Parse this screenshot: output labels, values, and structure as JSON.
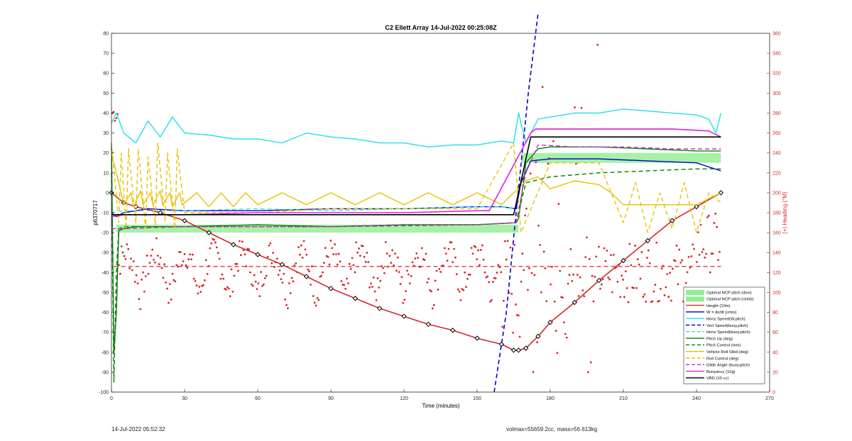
{
  "chart_data": {
    "type": "line",
    "title": "C2 Ellett Array 14-Jul-2022 00:25:08Z",
    "xlabel": "Time (minutes)",
    "ylabel": "p6370717",
    "y2label": "(+) Heading (°M)",
    "xlim": [
      0,
      270
    ],
    "ylim": [
      -100,
      80
    ],
    "y2lim": [
      0,
      360
    ],
    "xticks": [
      0,
      30,
      60,
      90,
      120,
      150,
      180,
      210,
      240,
      270
    ],
    "yticks": [
      -100,
      -90,
      -80,
      -70,
      -60,
      -50,
      -40,
      -30,
      -20,
      -10,
      0,
      10,
      20,
      30,
      40,
      50,
      60,
      70,
      80
    ],
    "y2ticks": [
      0,
      20,
      40,
      60,
      80,
      100,
      120,
      140,
      160,
      180,
      200,
      220,
      240,
      260,
      280,
      300,
      320,
      340,
      360
    ],
    "grid": false,
    "legend_position": "bottom-right",
    "heading_color": "#d62728",
    "bands": [
      {
        "name": "Optimal NCP pitch (dive)",
        "color": "#90ee90",
        "x": [
          2,
          167
        ],
        "y": [
          -20,
          -16
        ]
      },
      {
        "name": "Optimal NCP pitch (climb)",
        "color": "#90ee90",
        "x": [
          168,
          250
        ],
        "y": [
          15,
          20
        ]
      }
    ],
    "series": [
      {
        "name": "Height (10m)",
        "color": "#d62728",
        "style": "solid",
        "width": 1.6,
        "markers": "diamond",
        "x": [
          0,
          5,
          10,
          20,
          30,
          40,
          50,
          60,
          70,
          80,
          90,
          100,
          110,
          120,
          130,
          140,
          150,
          160,
          165,
          167,
          170,
          175,
          180,
          190,
          200,
          210,
          220,
          230,
          240,
          250
        ],
        "y": [
          0,
          -5,
          -7,
          -10,
          -14,
          -20,
          -26,
          -31,
          -36,
          -42,
          -48,
          -53,
          -58,
          -62,
          -66,
          -69,
          -73,
          -76,
          -79,
          -79,
          -78,
          -72,
          -65,
          -55,
          -44,
          -34,
          -24,
          -14,
          -7,
          0
        ]
      },
      {
        "name": "W = dz/dt (cm/s)",
        "color": "#0000cc",
        "style": "solid",
        "width": 1.4,
        "x": [
          0,
          2,
          5,
          15,
          30,
          60,
          90,
          120,
          150,
          160,
          166,
          168,
          172,
          180,
          200,
          220,
          240,
          250
        ],
        "y": [
          -10,
          -12,
          -10,
          -8,
          -9,
          -9,
          -8,
          -8,
          -7,
          -7,
          -8,
          5,
          16,
          17,
          17,
          16,
          15,
          11
        ]
      },
      {
        "name": "Horiz Speed(W,pitch)",
        "color": "#22e0e8",
        "style": "solid",
        "width": 1.4,
        "x": [
          0,
          2,
          5,
          10,
          15,
          20,
          25,
          30,
          40,
          50,
          60,
          70,
          80,
          90,
          100,
          110,
          120,
          130,
          140,
          150,
          160,
          165,
          167,
          170,
          175,
          180,
          190,
          200,
          210,
          220,
          230,
          240,
          245,
          248,
          250
        ],
        "y": [
          35,
          40,
          30,
          25,
          36,
          28,
          38,
          30,
          29,
          27,
          27,
          25,
          30,
          28,
          27,
          25,
          25,
          23,
          24,
          24,
          26,
          25,
          40,
          25,
          37,
          38,
          40,
          40,
          42,
          41,
          40,
          39,
          37,
          30,
          40
        ]
      },
      {
        "name": "Vert Speed(buoy,pitch)",
        "color": "#0000dd",
        "style": "dashed",
        "width": 1.6,
        "x": [
          157,
          162,
          166,
          171,
          175
        ],
        "y": [
          -100,
          -60,
          -10,
          50,
          90
        ]
      },
      {
        "name": "Horiz Speed(buoy,pitch)",
        "color": "#22e0e8",
        "style": "dashed",
        "width": 1.2,
        "x": [
          0,
          5,
          30,
          60,
          90,
          120,
          150,
          160,
          165
        ],
        "y": [
          -10,
          -9,
          -9,
          -8,
          -9,
          -8,
          -7,
          -7,
          -8
        ]
      },
      {
        "name": "Pitch Up (deg)",
        "color": "#008000",
        "style": "solid",
        "width": 1.4,
        "x": [
          0,
          1,
          2,
          3,
          5,
          10,
          30,
          60,
          90,
          120,
          150,
          166,
          167,
          170,
          175,
          180,
          200,
          220,
          240,
          250
        ],
        "y": [
          25,
          -80,
          -60,
          -19,
          -18,
          -17,
          -17,
          -16,
          -17,
          -16,
          -16,
          -15,
          -13,
          15,
          22,
          23,
          23,
          22,
          21,
          21
        ]
      },
      {
        "name": "Pitch Control (mm)",
        "color": "#008000",
        "style": "dashed",
        "width": 1.4,
        "x": [
          0,
          1,
          2,
          3,
          5,
          30,
          90,
          150,
          166,
          170,
          180,
          200,
          220,
          240,
          250
        ],
        "y": [
          10,
          -95,
          -40,
          -18,
          -17,
          -17,
          -17,
          -16,
          -15,
          5,
          8,
          10,
          11,
          12,
          12
        ]
      },
      {
        "name": "Vehicle Roll Stbd (deg)",
        "color": "#e6c200",
        "style": "solid",
        "width": 1.4,
        "x": [
          0,
          4,
          5,
          8,
          9,
          12,
          13,
          16,
          17,
          20,
          21,
          24,
          25,
          28,
          29,
          35,
          40,
          45,
          50,
          55,
          60,
          70,
          80,
          90,
          100,
          110,
          120,
          130,
          140,
          150,
          160,
          165,
          167,
          170,
          175,
          180,
          190,
          200,
          205,
          210,
          220,
          230,
          240,
          250
        ],
        "y": [
          20,
          0,
          -6,
          0,
          -7,
          1,
          -6,
          0,
          -6,
          1,
          -6,
          0,
          -7,
          0,
          -6,
          0,
          -7,
          0,
          -7,
          0,
          -6,
          0,
          -6,
          0,
          -6,
          0,
          -6,
          0,
          -6,
          0,
          -6,
          0,
          2,
          6,
          8,
          2,
          6,
          4,
          0,
          -6,
          -6,
          -6,
          -6,
          0
        ]
      },
      {
        "name": "Roll Control (deg)",
        "color": "#e6c200",
        "style": "dashed",
        "width": 1.4,
        "x": [
          0,
          3,
          4,
          6,
          7,
          10,
          11,
          14,
          15,
          18,
          19,
          22,
          23,
          26,
          27,
          30,
          60,
          90,
          120,
          150,
          165,
          168,
          180,
          200,
          210,
          215,
          220,
          225,
          230,
          235,
          240,
          245,
          250
        ],
        "y": [
          25,
          -15,
          20,
          -18,
          22,
          -15,
          22,
          -18,
          18,
          -16,
          25,
          -14,
          20,
          -18,
          22,
          -10,
          -10,
          -8,
          -8,
          -8,
          25,
          -20,
          15,
          15,
          -15,
          5,
          -20,
          0,
          -18,
          5,
          -20,
          0,
          -5
        ]
      },
      {
        "name": "Glide Angle (buoy,pitch)",
        "color": "#e020e0",
        "style": "dashed",
        "width": 1.4,
        "x": [
          0,
          5,
          30,
          60,
          90,
          120,
          150,
          166,
          170,
          175,
          190,
          210,
          230,
          250
        ],
        "y": [
          -18,
          -18,
          -17,
          -17,
          -17,
          -16,
          -16,
          -15,
          10,
          24,
          23,
          23,
          22,
          22
        ]
      },
      {
        "name": "Buoyancy (10g)",
        "color": "#e020e0",
        "style": "solid",
        "width": 1.6,
        "x": [
          0,
          5,
          30,
          60,
          90,
          120,
          150,
          155,
          172,
          174,
          200,
          230,
          245,
          250
        ],
        "y": [
          -12,
          -11,
          -11,
          -10,
          -10,
          -10,
          -9,
          -9,
          30,
          32,
          32,
          32,
          31,
          28
        ]
      },
      {
        "name": "VBD (10 cc)",
        "color": "#000000",
        "style": "solid",
        "width": 1.6,
        "x": [
          0,
          165,
          172,
          250
        ],
        "y": [
          -11,
          -11,
          28,
          28
        ]
      }
    ],
    "annotations": [
      {
        "series": "Heading reference (dashed)",
        "color": "#d62728",
        "y2": 126
      }
    ]
  },
  "footer": {
    "left": "14-Jul-2022 05:52:32",
    "right": "volmax=55659.2cc, mass=56.613kg"
  }
}
